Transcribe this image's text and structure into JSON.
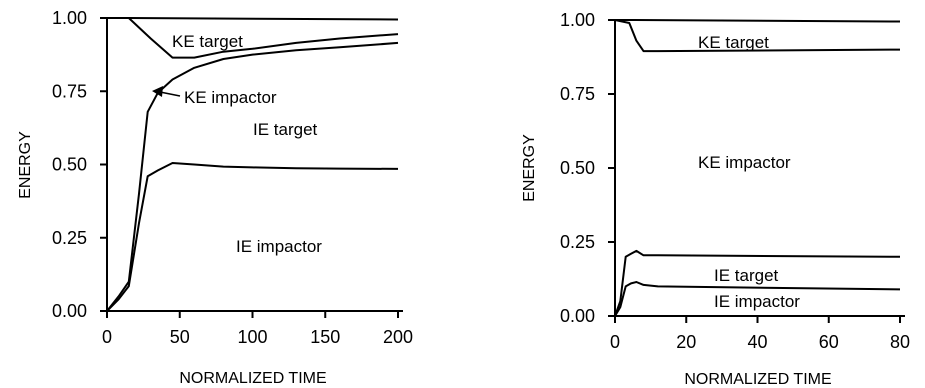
{
  "chart_data": [
    {
      "type": "line",
      "xlabel": "NORMALIZED TIME",
      "ylabel": "ENERGY",
      "xlim": [
        0,
        200
      ],
      "ylim": [
        0,
        1
      ],
      "xticks": [
        0,
        50,
        100,
        150,
        200
      ],
      "xtick_labels": [
        "0",
        "50",
        "100",
        "150",
        "200"
      ],
      "yticks": [
        0,
        0.25,
        0.5,
        0.75,
        1
      ],
      "ytick_labels": [
        "0.00",
        "0.25",
        "0.50",
        "0.75",
        "1.00"
      ],
      "grid": false,
      "series": [
        {
          "x": [
            0,
            15,
            200
          ],
          "y": [
            1.0,
            1.0,
            0.995
          ]
        },
        {
          "x": [
            0,
            15,
            30,
            45,
            60,
            80,
            100,
            130,
            160,
            200
          ],
          "y": [
            1.0,
            1.0,
            0.93,
            0.865,
            0.865,
            0.885,
            0.895,
            0.915,
            0.93,
            0.945
          ]
        },
        {
          "x": [
            0,
            8,
            15,
            22,
            28,
            35,
            45,
            60,
            80,
            100,
            130,
            160,
            200
          ],
          "y": [
            0.0,
            0.05,
            0.1,
            0.4,
            0.68,
            0.745,
            0.79,
            0.83,
            0.86,
            0.875,
            0.89,
            0.9,
            0.915
          ]
        },
        {
          "x": [
            0,
            8,
            15,
            22,
            28,
            35,
            45,
            60,
            80,
            100,
            130,
            160,
            200
          ],
          "y": [
            0.0,
            0.04,
            0.085,
            0.3,
            0.46,
            0.48,
            0.505,
            0.5,
            0.493,
            0.49,
            0.487,
            0.486,
            0.485
          ]
        }
      ],
      "annotations": [
        {
          "text": "KE target"
        },
        {
          "text": "KE impactor"
        },
        {
          "text": "IE target"
        },
        {
          "text": "IE impactor"
        }
      ]
    },
    {
      "type": "line",
      "xlabel": "NORMALIZED TIME",
      "ylabel": "ENERGY",
      "xlim": [
        0,
        80
      ],
      "ylim": [
        0,
        1
      ],
      "xticks": [
        0,
        20,
        40,
        60,
        80
      ],
      "xtick_labels": [
        "0",
        "20",
        "40",
        "60",
        "80"
      ],
      "yticks": [
        0,
        0.25,
        0.5,
        0.75,
        1
      ],
      "ytick_labels": [
        "0.00",
        "0.25",
        "0.50",
        "0.75",
        "1.00"
      ],
      "grid": false,
      "series": [
        {
          "x": [
            0,
            4,
            80
          ],
          "y": [
            1.0,
            1.0,
            0.995
          ]
        },
        {
          "x": [
            0,
            4,
            6,
            8,
            12,
            80
          ],
          "y": [
            1.0,
            0.99,
            0.93,
            0.895,
            0.895,
            0.9
          ]
        },
        {
          "x": [
            0,
            1.5,
            3,
            4.5,
            6,
            8,
            12,
            80
          ],
          "y": [
            0.0,
            0.05,
            0.2,
            0.21,
            0.22,
            0.205,
            0.205,
            0.2
          ]
        },
        {
          "x": [
            0,
            1.5,
            3,
            4.5,
            6,
            8,
            12,
            80
          ],
          "y": [
            0.0,
            0.03,
            0.1,
            0.11,
            0.115,
            0.105,
            0.1,
            0.09
          ]
        }
      ],
      "annotations": [
        {
          "text": "KE target"
        },
        {
          "text": "KE impactor"
        },
        {
          "text": "IE target"
        },
        {
          "text": "IE impactor"
        }
      ]
    }
  ]
}
